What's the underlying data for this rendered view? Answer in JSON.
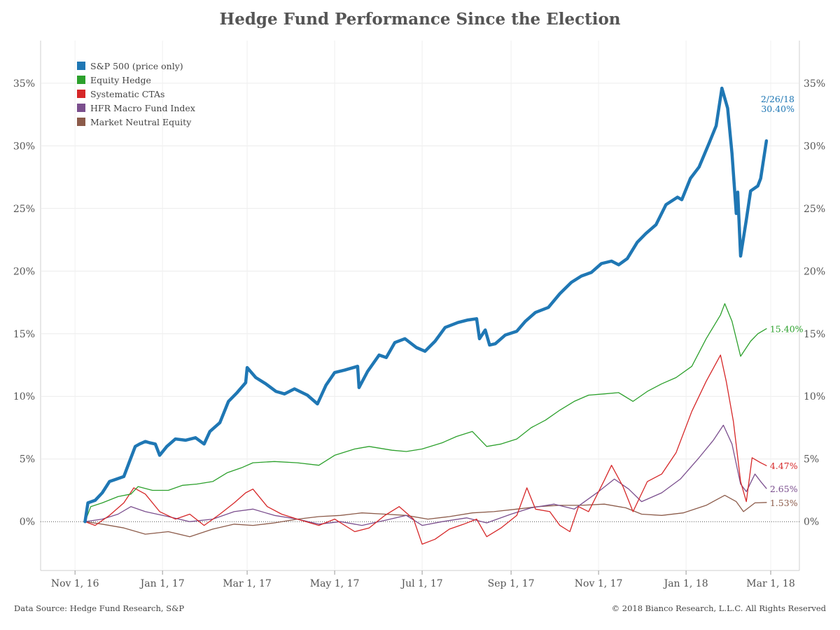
{
  "chart_data": {
    "type": "line",
    "title": "Hedge Fund Performance Since the Election",
    "y_ticks": [
      0,
      5,
      10,
      15,
      20,
      25,
      30,
      35
    ],
    "y_tick_labels": [
      "0%",
      "5%",
      "10%",
      "15%",
      "20%",
      "25%",
      "30%",
      "35%"
    ],
    "ylim": [
      -3.9,
      38.4
    ],
    "x_ticks": [
      "2016-11-01",
      "2017-01-01",
      "2017-03-01",
      "2017-05-01",
      "2017-07-01",
      "2017-09-01",
      "2017-11-01",
      "2018-01-01",
      "2018-03-01"
    ],
    "x_tick_labels": [
      "Nov 1, 16",
      "Jan 1, 17",
      "Mar 1, 17",
      "May 1, 17",
      "Jul 1, 17",
      "Sep 1, 17",
      "Nov 1, 17",
      "Jan 1, 18",
      "Mar 1, 18"
    ],
    "xlim": [
      "2016-10-08",
      "2018-03-21"
    ],
    "grid": true,
    "zero_line": "dotted",
    "legend_position": "top-left",
    "series": [
      {
        "name": "S&P 500 (price only)",
        "color": "#1f77b4",
        "end_label": "30.40%",
        "end_date_label": "2/26/18",
        "points": [
          [
            "2016-11-08",
            0.0
          ],
          [
            "2016-11-10",
            1.5
          ],
          [
            "2016-11-15",
            1.7
          ],
          [
            "2016-11-20",
            2.3
          ],
          [
            "2016-11-25",
            3.2
          ],
          [
            "2016-11-30",
            3.4
          ],
          [
            "2016-12-05",
            3.6
          ],
          [
            "2016-12-09",
            4.8
          ],
          [
            "2016-12-13",
            6.0
          ],
          [
            "2016-12-16",
            6.2
          ],
          [
            "2016-12-20",
            6.4
          ],
          [
            "2016-12-23",
            6.3
          ],
          [
            "2016-12-27",
            6.2
          ],
          [
            "2016-12-30",
            5.3
          ],
          [
            "2017-01-04",
            6.0
          ],
          [
            "2017-01-10",
            6.6
          ],
          [
            "2017-01-17",
            6.5
          ],
          [
            "2017-01-24",
            6.7
          ],
          [
            "2017-01-30",
            6.2
          ],
          [
            "2017-02-03",
            7.2
          ],
          [
            "2017-02-10",
            7.9
          ],
          [
            "2017-02-16",
            9.6
          ],
          [
            "2017-02-22",
            10.3
          ],
          [
            "2017-02-28",
            11.1
          ],
          [
            "2017-03-01",
            12.3
          ],
          [
            "2017-03-07",
            11.5
          ],
          [
            "2017-03-14",
            11.0
          ],
          [
            "2017-03-21",
            10.4
          ],
          [
            "2017-03-27",
            10.2
          ],
          [
            "2017-04-03",
            10.6
          ],
          [
            "2017-04-12",
            10.1
          ],
          [
            "2017-04-19",
            9.4
          ],
          [
            "2017-04-25",
            10.9
          ],
          [
            "2017-05-01",
            11.9
          ],
          [
            "2017-05-08",
            12.1
          ],
          [
            "2017-05-17",
            12.4
          ],
          [
            "2017-05-18",
            10.7
          ],
          [
            "2017-05-24",
            12.0
          ],
          [
            "2017-06-01",
            13.3
          ],
          [
            "2017-06-06",
            13.1
          ],
          [
            "2017-06-12",
            14.3
          ],
          [
            "2017-06-19",
            14.6
          ],
          [
            "2017-06-27",
            13.9
          ],
          [
            "2017-07-03",
            13.6
          ],
          [
            "2017-07-10",
            14.4
          ],
          [
            "2017-07-17",
            15.5
          ],
          [
            "2017-07-26",
            15.9
          ],
          [
            "2017-08-02",
            16.1
          ],
          [
            "2017-08-08",
            16.2
          ],
          [
            "2017-08-10",
            14.6
          ],
          [
            "2017-08-14",
            15.3
          ],
          [
            "2017-08-17",
            14.1
          ],
          [
            "2017-08-21",
            14.2
          ],
          [
            "2017-08-28",
            14.9
          ],
          [
            "2017-09-05",
            15.2
          ],
          [
            "2017-09-11",
            16.0
          ],
          [
            "2017-09-18",
            16.7
          ],
          [
            "2017-09-27",
            17.1
          ],
          [
            "2017-10-05",
            18.2
          ],
          [
            "2017-10-13",
            19.1
          ],
          [
            "2017-10-20",
            19.6
          ],
          [
            "2017-10-27",
            19.9
          ],
          [
            "2017-11-03",
            20.6
          ],
          [
            "2017-11-10",
            20.8
          ],
          [
            "2017-11-15",
            20.5
          ],
          [
            "2017-11-21",
            21.0
          ],
          [
            "2017-11-28",
            22.3
          ],
          [
            "2017-12-04",
            23.0
          ],
          [
            "2017-12-11",
            23.7
          ],
          [
            "2017-12-18",
            25.3
          ],
          [
            "2017-12-26",
            25.9
          ],
          [
            "2017-12-29",
            25.7
          ],
          [
            "2018-01-04",
            27.4
          ],
          [
            "2018-01-10",
            28.3
          ],
          [
            "2018-01-17",
            30.2
          ],
          [
            "2018-01-22",
            31.6
          ],
          [
            "2018-01-26",
            34.6
          ],
          [
            "2018-01-30",
            33.0
          ],
          [
            "2018-02-02",
            29.4
          ],
          [
            "2018-02-05",
            24.6
          ],
          [
            "2018-02-06",
            26.3
          ],
          [
            "2018-02-08",
            21.2
          ],
          [
            "2018-02-12",
            24.1
          ],
          [
            "2018-02-15",
            26.4
          ],
          [
            "2018-02-20",
            26.8
          ],
          [
            "2018-02-22",
            27.4
          ],
          [
            "2018-02-26",
            30.4
          ]
        ]
      },
      {
        "name": "Equity Hedge",
        "color": "#2ca02c",
        "end_label": "15.40%",
        "points": [
          [
            "2016-11-08",
            0.0
          ],
          [
            "2016-11-12",
            1.2
          ],
          [
            "2016-11-20",
            1.5
          ],
          [
            "2016-12-01",
            2.0
          ],
          [
            "2016-12-10",
            2.2
          ],
          [
            "2016-12-15",
            2.8
          ],
          [
            "2016-12-25",
            2.5
          ],
          [
            "2017-01-05",
            2.5
          ],
          [
            "2017-01-15",
            2.9
          ],
          [
            "2017-01-25",
            3.0
          ],
          [
            "2017-02-05",
            3.2
          ],
          [
            "2017-02-15",
            3.9
          ],
          [
            "2017-02-25",
            4.3
          ],
          [
            "2017-03-05",
            4.7
          ],
          [
            "2017-03-20",
            4.8
          ],
          [
            "2017-04-05",
            4.7
          ],
          [
            "2017-04-20",
            4.5
          ],
          [
            "2017-05-01",
            5.3
          ],
          [
            "2017-05-15",
            5.8
          ],
          [
            "2017-05-25",
            6.0
          ],
          [
            "2017-06-10",
            5.7
          ],
          [
            "2017-06-20",
            5.6
          ],
          [
            "2017-07-01",
            5.8
          ],
          [
            "2017-07-15",
            6.3
          ],
          [
            "2017-07-25",
            6.8
          ],
          [
            "2017-08-05",
            7.2
          ],
          [
            "2017-08-15",
            6.0
          ],
          [
            "2017-08-25",
            6.2
          ],
          [
            "2017-09-05",
            6.6
          ],
          [
            "2017-09-15",
            7.5
          ],
          [
            "2017-09-25",
            8.1
          ],
          [
            "2017-10-05",
            8.9
          ],
          [
            "2017-10-15",
            9.6
          ],
          [
            "2017-10-25",
            10.1
          ],
          [
            "2017-11-05",
            10.2
          ],
          [
            "2017-11-15",
            10.3
          ],
          [
            "2017-11-25",
            9.6
          ],
          [
            "2017-12-05",
            10.4
          ],
          [
            "2017-12-15",
            11.0
          ],
          [
            "2017-12-25",
            11.5
          ],
          [
            "2018-01-05",
            12.4
          ],
          [
            "2018-01-15",
            14.6
          ],
          [
            "2018-01-25",
            16.5
          ],
          [
            "2018-01-28",
            17.4
          ],
          [
            "2018-02-02",
            16.0
          ],
          [
            "2018-02-08",
            13.2
          ],
          [
            "2018-02-15",
            14.4
          ],
          [
            "2018-02-20",
            15.0
          ],
          [
            "2018-02-26",
            15.4
          ]
        ]
      },
      {
        "name": "Systematic CTAs",
        "color": "#d62728",
        "end_label": "4.47%",
        "points": [
          [
            "2016-11-08",
            0.0
          ],
          [
            "2016-11-15",
            -0.3
          ],
          [
            "2016-11-25",
            0.5
          ],
          [
            "2016-12-05",
            1.5
          ],
          [
            "2016-12-12",
            2.7
          ],
          [
            "2016-12-20",
            2.2
          ],
          [
            "2016-12-30",
            0.8
          ],
          [
            "2017-01-10",
            0.2
          ],
          [
            "2017-01-20",
            0.6
          ],
          [
            "2017-01-30",
            -0.3
          ],
          [
            "2017-02-10",
            0.6
          ],
          [
            "2017-02-20",
            1.5
          ],
          [
            "2017-02-28",
            2.3
          ],
          [
            "2017-03-05",
            2.6
          ],
          [
            "2017-03-15",
            1.2
          ],
          [
            "2017-03-25",
            0.6
          ],
          [
            "2017-04-05",
            0.2
          ],
          [
            "2017-04-20",
            -0.3
          ],
          [
            "2017-05-01",
            0.2
          ],
          [
            "2017-05-15",
            -0.8
          ],
          [
            "2017-05-25",
            -0.5
          ],
          [
            "2017-06-05",
            0.5
          ],
          [
            "2017-06-15",
            1.2
          ],
          [
            "2017-06-25",
            0.2
          ],
          [
            "2017-07-01",
            -1.8
          ],
          [
            "2017-07-10",
            -1.4
          ],
          [
            "2017-07-20",
            -0.6
          ],
          [
            "2017-07-30",
            -0.2
          ],
          [
            "2017-08-08",
            0.2
          ],
          [
            "2017-08-15",
            -1.2
          ],
          [
            "2017-08-25",
            -0.5
          ],
          [
            "2017-09-05",
            0.5
          ],
          [
            "2017-09-12",
            2.7
          ],
          [
            "2017-09-18",
            1.0
          ],
          [
            "2017-09-28",
            0.8
          ],
          [
            "2017-10-05",
            -0.3
          ],
          [
            "2017-10-12",
            -0.8
          ],
          [
            "2017-10-18",
            1.2
          ],
          [
            "2017-10-25",
            0.8
          ],
          [
            "2017-11-05",
            3.3
          ],
          [
            "2017-11-10",
            4.5
          ],
          [
            "2017-11-18",
            2.8
          ],
          [
            "2017-11-25",
            0.8
          ],
          [
            "2017-12-05",
            3.2
          ],
          [
            "2017-12-15",
            3.8
          ],
          [
            "2017-12-25",
            5.5
          ],
          [
            "2018-01-05",
            8.8
          ],
          [
            "2018-01-15",
            11.2
          ],
          [
            "2018-01-25",
            13.3
          ],
          [
            "2018-01-29",
            11.2
          ],
          [
            "2018-02-03",
            8.0
          ],
          [
            "2018-02-08",
            3.2
          ],
          [
            "2018-02-12",
            1.6
          ],
          [
            "2018-02-16",
            5.1
          ],
          [
            "2018-02-22",
            4.7
          ],
          [
            "2018-02-26",
            4.47
          ]
        ]
      },
      {
        "name": "HFR Macro Fund Index",
        "color": "#7b4f8e",
        "end_label": "2.65%",
        "points": [
          [
            "2016-11-08",
            0.0
          ],
          [
            "2016-11-20",
            0.2
          ],
          [
            "2016-12-01",
            0.6
          ],
          [
            "2016-12-10",
            1.2
          ],
          [
            "2016-12-20",
            0.8
          ],
          [
            "2017-01-05",
            0.4
          ],
          [
            "2017-01-20",
            0.0
          ],
          [
            "2017-02-05",
            0.2
          ],
          [
            "2017-02-20",
            0.8
          ],
          [
            "2017-03-05",
            1.0
          ],
          [
            "2017-03-20",
            0.5
          ],
          [
            "2017-04-05",
            0.2
          ],
          [
            "2017-04-20",
            -0.2
          ],
          [
            "2017-05-05",
            0.0
          ],
          [
            "2017-05-20",
            -0.3
          ],
          [
            "2017-06-05",
            0.1
          ],
          [
            "2017-06-20",
            0.5
          ],
          [
            "2017-07-01",
            -0.3
          ],
          [
            "2017-07-15",
            0.0
          ],
          [
            "2017-08-01",
            0.3
          ],
          [
            "2017-08-15",
            -0.1
          ],
          [
            "2017-09-01",
            0.6
          ],
          [
            "2017-09-15",
            1.1
          ],
          [
            "2017-10-01",
            1.4
          ],
          [
            "2017-10-15",
            1.0
          ],
          [
            "2017-11-01",
            2.4
          ],
          [
            "2017-11-12",
            3.4
          ],
          [
            "2017-11-22",
            2.6
          ],
          [
            "2017-12-01",
            1.6
          ],
          [
            "2017-12-15",
            2.3
          ],
          [
            "2017-12-28",
            3.4
          ],
          [
            "2018-01-10",
            5.1
          ],
          [
            "2018-01-20",
            6.5
          ],
          [
            "2018-01-27",
            7.7
          ],
          [
            "2018-02-02",
            6.2
          ],
          [
            "2018-02-08",
            3.0
          ],
          [
            "2018-02-12",
            2.4
          ],
          [
            "2018-02-18",
            3.8
          ],
          [
            "2018-02-22",
            3.2
          ],
          [
            "2018-02-26",
            2.65
          ]
        ]
      },
      {
        "name": "Market Neutral Equity",
        "color": "#8c5b4a",
        "end_label": "1.53%",
        "points": [
          [
            "2016-11-08",
            0.0
          ],
          [
            "2016-11-20",
            -0.2
          ],
          [
            "2016-12-05",
            -0.5
          ],
          [
            "2016-12-20",
            -1.0
          ],
          [
            "2017-01-05",
            -0.8
          ],
          [
            "2017-01-20",
            -1.2
          ],
          [
            "2017-02-05",
            -0.6
          ],
          [
            "2017-02-20",
            -0.2
          ],
          [
            "2017-03-05",
            -0.3
          ],
          [
            "2017-03-20",
            -0.1
          ],
          [
            "2017-04-05",
            0.2
          ],
          [
            "2017-04-20",
            0.4
          ],
          [
            "2017-05-05",
            0.5
          ],
          [
            "2017-05-20",
            0.7
          ],
          [
            "2017-06-05",
            0.6
          ],
          [
            "2017-06-20",
            0.5
          ],
          [
            "2017-07-05",
            0.2
          ],
          [
            "2017-07-20",
            0.4
          ],
          [
            "2017-08-05",
            0.7
          ],
          [
            "2017-08-20",
            0.8
          ],
          [
            "2017-09-05",
            1.0
          ],
          [
            "2017-09-20",
            1.2
          ],
          [
            "2017-10-05",
            1.3
          ],
          [
            "2017-10-20",
            1.3
          ],
          [
            "2017-11-05",
            1.4
          ],
          [
            "2017-11-20",
            1.1
          ],
          [
            "2017-12-01",
            0.6
          ],
          [
            "2017-12-15",
            0.5
          ],
          [
            "2017-12-30",
            0.7
          ],
          [
            "2018-01-15",
            1.3
          ],
          [
            "2018-01-28",
            2.1
          ],
          [
            "2018-02-05",
            1.6
          ],
          [
            "2018-02-10",
            0.8
          ],
          [
            "2018-02-18",
            1.5
          ],
          [
            "2018-02-26",
            1.53
          ]
        ]
      }
    ]
  },
  "footer": {
    "source": "Data Source: Hedge Fund Research, S&P",
    "copyright": "© 2018 Bianco Research, L.L.C. All Rights Reserved"
  }
}
